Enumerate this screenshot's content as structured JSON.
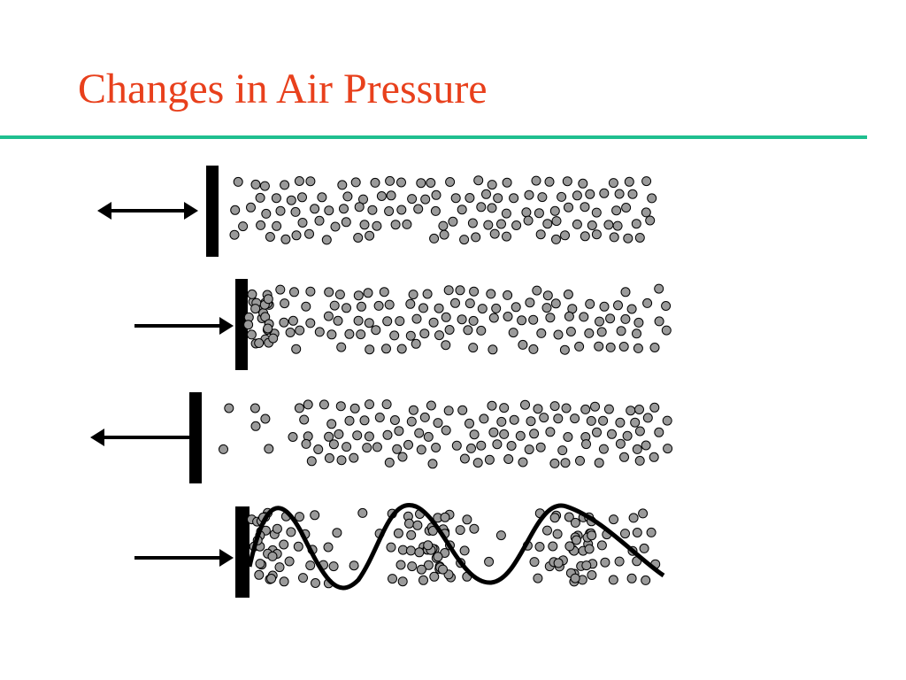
{
  "title": "Changes in Air Pressure"
}
